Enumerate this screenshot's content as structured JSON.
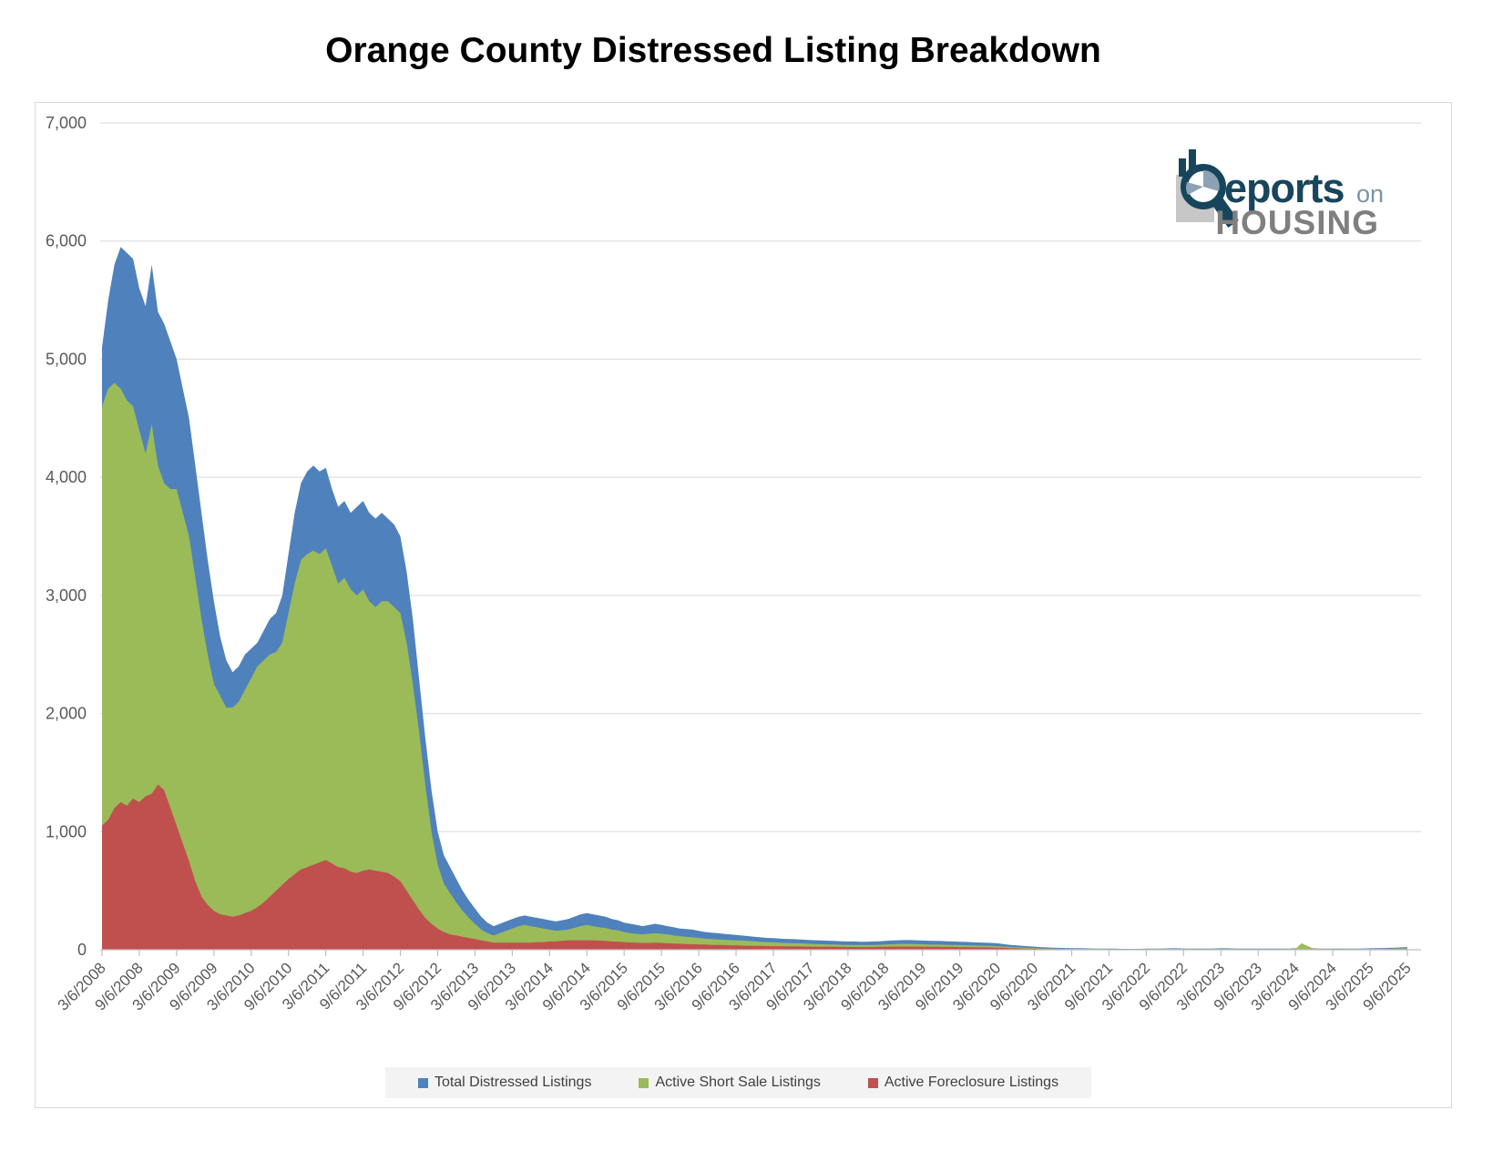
{
  "page": {
    "title": "Orange County Distressed Listing Breakdown"
  },
  "logo": {
    "reports": "eports",
    "on": "on",
    "housing": "HOUSING"
  },
  "legend": [
    {
      "label": "Total Distressed Listings",
      "color": "#4f81bd"
    },
    {
      "label": "Active Short Sale Listings",
      "color": "#9bbb59"
    },
    {
      "label": "Active Foreclosure Listings",
      "color": "#c0504d"
    }
  ],
  "colors": {
    "grid": "#d9d9d9",
    "axis": "#bfbfbf",
    "tick_text": "#595959",
    "legend_text": "#404040"
  },
  "chart_data": {
    "type": "area",
    "title": "Orange County Distressed Listing Breakdown",
    "xlabel": "",
    "ylabel": "",
    "ylim": [
      0,
      7000
    ],
    "grid": true,
    "legend_position": "bottom",
    "x_start": "3/6/2008",
    "x_interval_months": 1,
    "y_ticks": [
      0,
      1000,
      2000,
      3000,
      4000,
      5000,
      6000,
      7000
    ],
    "y_tick_labels": [
      "0",
      "1,000",
      "2,000",
      "3,000",
      "4,000",
      "5,000",
      "6,000",
      "7,000"
    ],
    "x_tick_every_points": 6,
    "x_tick_labels": [
      "3/6/2008",
      "9/6/2008",
      "3/6/2009",
      "9/6/2009",
      "3/6/2010",
      "9/6/2010",
      "3/6/2011",
      "9/6/2011",
      "3/6/2012",
      "9/6/2012",
      "3/6/2013",
      "9/6/2013",
      "3/6/2014",
      "9/6/2014",
      "3/6/2015",
      "9/6/2015",
      "3/6/2016",
      "9/6/2016",
      "3/6/2017",
      "9/6/2017",
      "3/6/2018",
      "9/6/2018",
      "3/6/2019",
      "9/6/2019",
      "3/6/2020",
      "9/6/2020",
      "3/6/2021",
      "9/6/2021",
      "3/6/2022",
      "9/6/2022",
      "3/6/2023",
      "9/6/2023",
      "3/6/2024",
      "9/6/2024",
      "3/6/2025",
      "9/6/2025"
    ],
    "series": [
      {
        "name": "Total Distressed Listings",
        "color": "#4f81bd",
        "values": [
          5100,
          5500,
          5800,
          5950,
          5900,
          5850,
          5600,
          5450,
          5800,
          5400,
          5300,
          5150,
          5000,
          4750,
          4500,
          4100,
          3700,
          3300,
          2950,
          2650,
          2450,
          2350,
          2400,
          2500,
          2550,
          2600,
          2700,
          2800,
          2850,
          3000,
          3350,
          3700,
          3950,
          4050,
          4100,
          4050,
          4080,
          3900,
          3750,
          3800,
          3700,
          3750,
          3800,
          3700,
          3650,
          3700,
          3650,
          3600,
          3500,
          3200,
          2800,
          2300,
          1800,
          1350,
          1000,
          800,
          700,
          600,
          500,
          420,
          350,
          280,
          230,
          200,
          220,
          240,
          260,
          280,
          290,
          280,
          270,
          260,
          250,
          240,
          250,
          260,
          280,
          300,
          310,
          300,
          290,
          280,
          260,
          250,
          230,
          220,
          210,
          200,
          210,
          220,
          210,
          200,
          190,
          180,
          175,
          170,
          160,
          150,
          145,
          140,
          135,
          130,
          125,
          120,
          115,
          110,
          105,
          100,
          98,
          95,
          92,
          90,
          88,
          85,
          82,
          80,
          78,
          76,
          74,
          72,
          70,
          70,
          68,
          68,
          70,
          72,
          75,
          78,
          80,
          82,
          82,
          80,
          78,
          76,
          75,
          74,
          72,
          70,
          68,
          66,
          64,
          62,
          60,
          58,
          55,
          48,
          42,
          38,
          34,
          30,
          26,
          22,
          20,
          18,
          16,
          15,
          14,
          13,
          12,
          11,
          10,
          10,
          9,
          9,
          8,
          8,
          8,
          8,
          9,
          10,
          10,
          11,
          12,
          12,
          11,
          10,
          10,
          9,
          10,
          11,
          12,
          12,
          11,
          10,
          10,
          9,
          9,
          10,
          10,
          9,
          9,
          10,
          12,
          18,
          15,
          12,
          10,
          10,
          9,
          9,
          9,
          10,
          10,
          11,
          12,
          14,
          15,
          16,
          18,
          20,
          22
        ]
      },
      {
        "name": "Active Short Sale Listings",
        "color": "#9bbb59",
        "values": [
          4600,
          4750,
          4800,
          4750,
          4650,
          4600,
          4400,
          4200,
          4450,
          4100,
          3950,
          3900,
          3900,
          3700,
          3500,
          3150,
          2800,
          2500,
          2250,
          2150,
          2050,
          2050,
          2100,
          2200,
          2300,
          2400,
          2450,
          2500,
          2520,
          2600,
          2850,
          3100,
          3300,
          3350,
          3380,
          3350,
          3400,
          3250,
          3100,
          3150,
          3050,
          3000,
          3050,
          2950,
          2900,
          2950,
          2950,
          2900,
          2850,
          2600,
          2250,
          1850,
          1400,
          1000,
          720,
          560,
          480,
          400,
          330,
          270,
          220,
          170,
          140,
          120,
          140,
          160,
          180,
          200,
          210,
          200,
          190,
          180,
          170,
          160,
          165,
          170,
          185,
          200,
          210,
          200,
          190,
          185,
          170,
          165,
          150,
          140,
          135,
          130,
          135,
          140,
          135,
          130,
          120,
          115,
          110,
          105,
          100,
          95,
          90,
          88,
          85,
          82,
          80,
          78,
          75,
          72,
          68,
          65,
          63,
          60,
          58,
          56,
          55,
          53,
          50,
          48,
          46,
          45,
          44,
          42,
          40,
          40,
          39,
          39,
          40,
          42,
          44,
          46,
          48,
          50,
          50,
          48,
          46,
          45,
          44,
          43,
          42,
          40,
          39,
          38,
          36,
          35,
          34,
          33,
          31,
          27,
          24,
          21,
          19,
          17,
          15,
          12,
          11,
          10,
          9,
          8,
          8,
          7,
          7,
          6,
          6,
          6,
          5,
          5,
          5,
          5,
          5,
          5,
          5,
          6,
          6,
          6,
          7,
          7,
          6,
          6,
          5,
          5,
          5,
          6,
          6,
          6,
          6,
          5,
          5,
          5,
          5,
          5,
          5,
          5,
          5,
          6,
          8,
          55,
          30,
          10,
          7,
          6,
          6,
          5,
          5,
          6,
          6,
          6,
          7,
          8,
          9,
          10,
          11,
          12,
          13
        ]
      },
      {
        "name": "Active Foreclosure Listings",
        "color": "#c0504d",
        "values": [
          1050,
          1100,
          1200,
          1250,
          1220,
          1280,
          1250,
          1300,
          1320,
          1400,
          1350,
          1200,
          1050,
          900,
          750,
          580,
          450,
          380,
          330,
          300,
          290,
          280,
          290,
          310,
          330,
          360,
          400,
          450,
          500,
          550,
          600,
          640,
          680,
          700,
          720,
          740,
          760,
          730,
          700,
          690,
          660,
          650,
          670,
          680,
          670,
          660,
          650,
          620,
          580,
          500,
          420,
          340,
          270,
          220,
          180,
          150,
          130,
          120,
          110,
          100,
          90,
          80,
          70,
          60,
          60,
          60,
          60,
          60,
          60,
          60,
          65,
          65,
          70,
          70,
          75,
          80,
          80,
          80,
          80,
          80,
          78,
          75,
          70,
          68,
          65,
          62,
          60,
          58,
          58,
          60,
          58,
          55,
          52,
          50,
          48,
          46,
          45,
          44,
          42,
          40,
          40,
          38,
          36,
          35,
          34,
          33,
          32,
          31,
          30,
          30,
          29,
          28,
          28,
          27,
          26,
          26,
          25,
          25,
          24,
          24,
          23,
          23,
          22,
          22,
          23,
          24,
          25,
          26,
          26,
          27,
          27,
          26,
          26,
          25,
          25,
          24,
          24,
          23,
          22,
          22,
          21,
          20,
          20,
          19,
          18,
          16,
          14,
          12,
          11,
          10,
          9,
          8,
          7,
          6,
          6,
          5,
          5,
          4,
          4,
          4,
          3,
          3,
          3,
          3,
          3,
          3,
          3,
          3,
          3,
          4,
          4,
          4,
          4,
          4,
          4,
          3,
          3,
          3,
          4,
          4,
          4,
          4,
          4,
          4,
          3,
          3,
          3,
          3,
          3,
          3,
          4,
          4,
          4,
          4,
          4,
          4,
          4,
          4,
          4,
          4,
          4,
          4,
          4,
          4,
          4,
          5,
          5,
          5,
          6,
          6,
          6
        ]
      }
    ]
  }
}
